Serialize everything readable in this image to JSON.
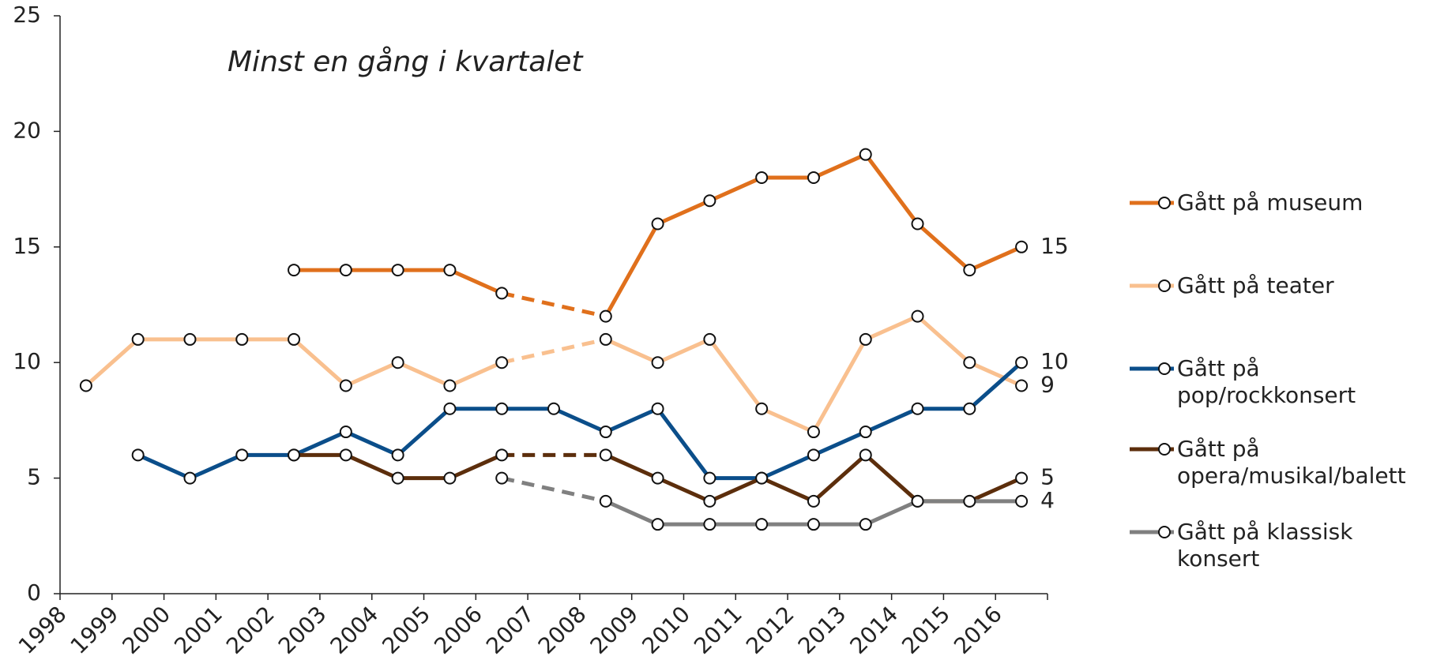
{
  "chart_data": {
    "type": "line",
    "annotation": "Minst en gång i kvartalet",
    "categories": [
      "1998",
      "1999",
      "2000",
      "2001",
      "2002",
      "2003",
      "2004",
      "2005",
      "2006",
      "2007",
      "2008",
      "2009",
      "2010",
      "2011",
      "2012",
      "2013",
      "2014",
      "2015",
      "2016"
    ],
    "series": [
      {
        "name": "Gått på museum",
        "color": "#e0701c",
        "values": [
          null,
          null,
          null,
          null,
          14,
          14,
          14,
          14,
          13,
          null,
          12,
          16,
          17,
          18,
          18,
          19,
          16,
          14,
          15
        ]
      },
      {
        "name": "Gått på teater",
        "color": "#f9c08f",
        "values": [
          9,
          11,
          11,
          11,
          11,
          9,
          10,
          9,
          10,
          null,
          11,
          10,
          11,
          8,
          7,
          11,
          12,
          10,
          9
        ]
      },
      {
        "name": "Gått på pop/rockkonsert",
        "color": "#0b4e8a",
        "values": [
          null,
          6,
          5,
          6,
          6,
          7,
          6,
          8,
          8,
          8,
          7,
          8,
          5,
          5,
          6,
          7,
          8,
          8,
          10
        ]
      },
      {
        "name": "Gått på opera/musikal/balett",
        "color": "#5c2e0c",
        "values": [
          null,
          null,
          null,
          null,
          6,
          6,
          5,
          5,
          6,
          null,
          6,
          5,
          4,
          5,
          4,
          6,
          4,
          4,
          5
        ]
      },
      {
        "name": "Gått på klassisk konsert",
        "color": "#808080",
        "values": [
          null,
          null,
          null,
          null,
          null,
          null,
          null,
          null,
          5,
          null,
          4,
          3,
          3,
          3,
          3,
          3,
          4,
          4,
          4
        ]
      }
    ],
    "ylim": [
      0,
      25
    ],
    "yticks": [
      0,
      5,
      10,
      15,
      20,
      25
    ],
    "gap_style": "dashed",
    "end_labels": true,
    "legend": "right"
  }
}
